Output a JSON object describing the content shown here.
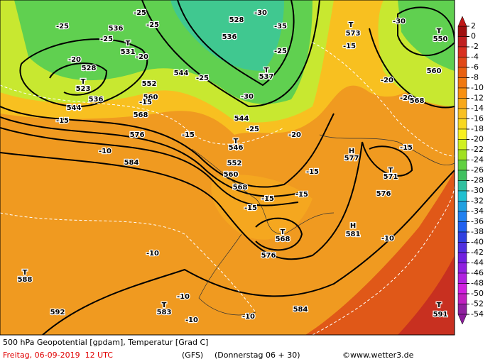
{
  "map": {
    "title": "500 hPa Geopotential [gpdam], Temperatur [Grad C]",
    "valid": "Freitag, 06-09-2019  12 UTC",
    "model": "(GFS)",
    "run": "(Donnerstag 06 + 30)",
    "credit": "©www.wetter3.de",
    "labels": [
      "-25",
      "536",
      "-25",
      "-25",
      "-25",
      "T",
      "531",
      "-20",
      "-20",
      "528",
      "T",
      "523",
      "552",
      "560",
      "-15",
      "568",
      "536",
      "544",
      "-15",
      "576",
      "-15",
      "-10",
      "584",
      "-10",
      "T",
      "588",
      "-10",
      "T",
      "583",
      "-10",
      "592",
      "-10",
      "584",
      "576",
      "T",
      "568",
      "-15",
      "-15",
      "-15",
      "568",
      "560",
      "552",
      "T",
      "546",
      "-25",
      "544",
      "-30",
      "-25",
      "544",
      "536",
      "528",
      "-30",
      "-35",
      "T",
      "537",
      "-25",
      "-20",
      "-15",
      "H",
      "577",
      "-15",
      "T",
      "571",
      "576",
      "H",
      "581",
      "-10",
      "T",
      "573",
      "-15",
      "-20",
      "-20",
      "568",
      "560",
      "-30",
      "T",
      "550",
      "T",
      "591"
    ]
  },
  "colorbar": {
    "ticks": [
      2,
      0,
      -2,
      -4,
      -6,
      -8,
      -10,
      -12,
      -14,
      -16,
      -18,
      -20,
      -22,
      -24,
      -26,
      -28,
      -30,
      -32,
      -34,
      -36,
      -38,
      -40,
      -42,
      -44,
      -46,
      -48,
      -50,
      -52,
      -54
    ],
    "colors": [
      "#a01010",
      "#c02020",
      "#d83020",
      "#e04818",
      "#e86010",
      "#f07810",
      "#f89010",
      "#f8a818",
      "#f8c020",
      "#f8d820",
      "#f8f020",
      "#d0f020",
      "#a0e020",
      "#60d040",
      "#40c060",
      "#30c0a0",
      "#20c0d0",
      "#20a0e0",
      "#2080f0",
      "#2060f0",
      "#3040e0",
      "#5030e0",
      "#7020e0",
      "#9020e0",
      "#b020e0",
      "#d020e0",
      "#c020c0",
      "#9020a0"
    ]
  }
}
